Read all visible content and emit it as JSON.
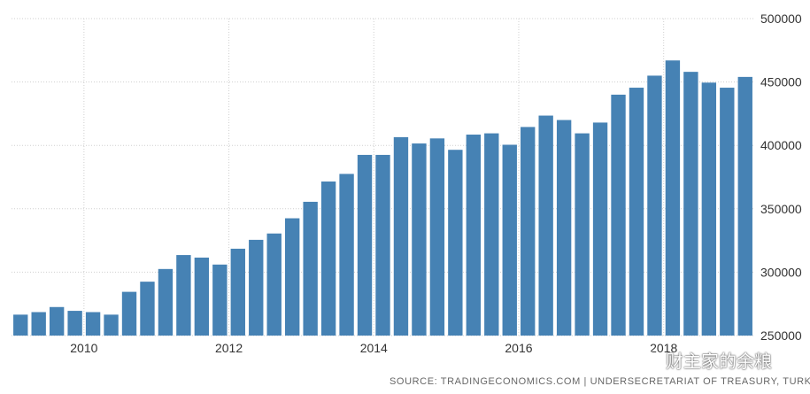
{
  "chart_data": {
    "type": "bar",
    "title": "",
    "xlabel": "",
    "ylabel": "",
    "ylim": [
      250000,
      500000
    ],
    "yticks": [
      250000,
      300000,
      350000,
      400000,
      450000,
      500000
    ],
    "ytick_labels": [
      "250000",
      "300000",
      "350000",
      "400000",
      "450000",
      "500000"
    ],
    "xtick_labels": [
      {
        "label": "2010",
        "index": 4
      },
      {
        "label": "2012",
        "index": 12
      },
      {
        "label": "2014",
        "index": 20
      },
      {
        "label": "2016",
        "index": 28
      },
      {
        "label": "2018",
        "index": 36
      }
    ],
    "grid": true,
    "bar_color": "#4682b4",
    "categories": [
      "2009-Q1",
      "2009-Q2",
      "2009-Q3",
      "2009-Q4",
      "2010-Q1",
      "2010-Q2",
      "2010-Q3",
      "2010-Q4",
      "2011-Q1",
      "2011-Q2",
      "2011-Q3",
      "2011-Q4",
      "2012-Q1",
      "2012-Q2",
      "2012-Q3",
      "2012-Q4",
      "2013-Q1",
      "2013-Q2",
      "2013-Q3",
      "2013-Q4",
      "2014-Q1",
      "2014-Q2",
      "2014-Q3",
      "2014-Q4",
      "2015-Q1",
      "2015-Q2",
      "2015-Q3",
      "2015-Q4",
      "2016-Q1",
      "2016-Q2",
      "2016-Q3",
      "2016-Q4",
      "2017-Q1",
      "2017-Q2",
      "2017-Q3",
      "2017-Q4",
      "2018-Q1",
      "2018-Q2",
      "2018-Q3",
      "2018-Q4",
      "2019-Q1"
    ],
    "values": [
      266500,
      268500,
      272500,
      269500,
      268500,
      266500,
      284500,
      292500,
      302500,
      313500,
      311500,
      306000,
      318500,
      325500,
      330500,
      342500,
      355500,
      371500,
      377500,
      392500,
      392500,
      406500,
      401500,
      405500,
      396500,
      408500,
      409500,
      400500,
      414500,
      423500,
      420000,
      409500,
      418000,
      440000,
      445500,
      455000,
      467000,
      458000,
      449500,
      445500,
      454000
    ]
  },
  "source_text": "SOURCE: TRADINGECONOMICS.COM  |  UNDERSECRETARIAT OF TREASURY, TURKEY",
  "watermark_text": "财主家的余粮",
  "watermark_icon": "wechat-icon"
}
